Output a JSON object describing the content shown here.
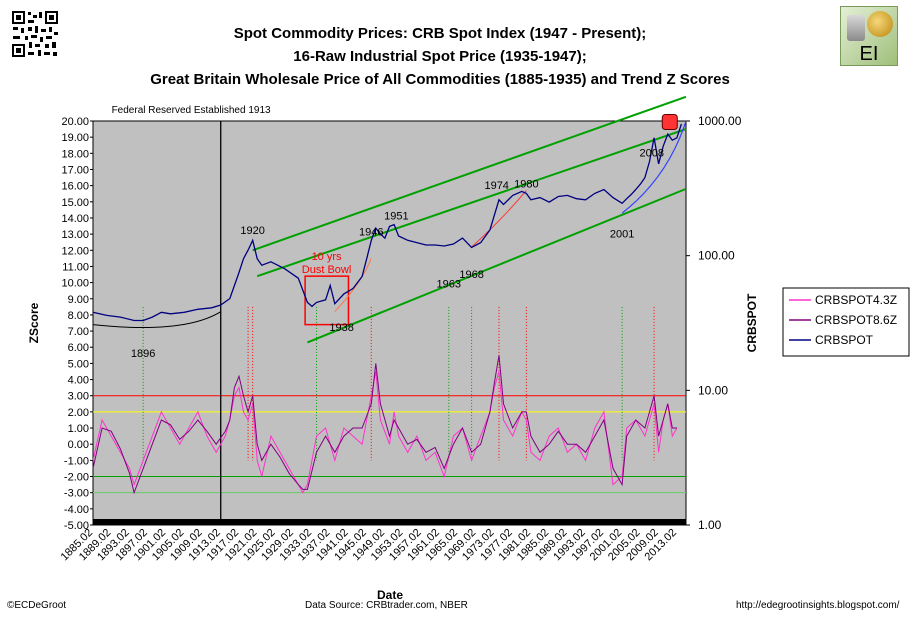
{
  "title": {
    "line1": "Spot Commodity Prices:  CRB Spot Index (1947 - Present);",
    "line2": "16-Raw Industrial Spot Price (1935-1947);",
    "line3": "Great Britain Wholesale Price of All Commodities (1885-1935) and Trend Z Scores"
  },
  "footer": {
    "left": "©ECDeGroot",
    "center": "Data Source:  CRBtrader.com, NBER",
    "right": "http://edegrootinsights.blogspot.com/"
  },
  "logo_text": "EI",
  "chart_data": {
    "type": "line",
    "xlabel": "Date",
    "ylabel_left": "ZScore",
    "ylabel_right": "CRBSPOT",
    "left_ylim": [
      -5,
      20
    ],
    "left_ticks": [
      "20.00",
      "19.00",
      "18.00",
      "17.00",
      "16.00",
      "15.00",
      "14.00",
      "13.00",
      "12.00",
      "11.00",
      "10.00",
      "9.00",
      "8.00",
      "7.00",
      "6.00",
      "5.00",
      "4.00",
      "3.00",
      "2.00",
      "1.00",
      "0.00",
      "-1.00",
      "-2.00",
      "-3.00",
      "-4.00",
      "-5.00"
    ],
    "right_scale": "log",
    "right_ticks": [
      "1000.00",
      "100.00",
      "10.00",
      "1.00"
    ],
    "right_tick_values": [
      1000,
      100,
      10,
      1
    ],
    "x_ticks": [
      "1885.02",
      "1889.02",
      "1893.02",
      "1897.02",
      "1901.02",
      "1905.02",
      "1909.02",
      "1913.02",
      "1917.02",
      "1921.02",
      "1925.02",
      "1929.02",
      "1933.02",
      "1937.02",
      "1941.02",
      "1945.02",
      "1949.02",
      "1953.02",
      "1957.02",
      "1961.02",
      "1965.02",
      "1969.02",
      "1973.02",
      "1977.02",
      "1981.02",
      "1985.02",
      "1989.02",
      "1993.02",
      "1997.02",
      "2001.02",
      "2005.02",
      "2009.02",
      "2013.02"
    ],
    "xlim": [
      1885,
      2015
    ],
    "legend_position": "right",
    "series": [
      {
        "name": "CRBSPOT4.3Z",
        "color": "#ff33cc",
        "axis": "left",
        "x": [
          1885,
          1887,
          1889,
          1891,
          1893,
          1894,
          1896,
          1898,
          1900,
          1902,
          1904,
          1906,
          1908,
          1910,
          1912,
          1914,
          1915,
          1916,
          1917,
          1918,
          1919,
          1920,
          1921,
          1922,
          1924,
          1926,
          1928,
          1930,
          1931,
          1932,
          1934,
          1936,
          1938,
          1940,
          1942,
          1944,
          1946,
          1947,
          1948,
          1950,
          1951,
          1952,
          1954,
          1956,
          1958,
          1960,
          1962,
          1964,
          1966,
          1968,
          1970,
          1972,
          1973,
          1974,
          1975,
          1977,
          1979,
          1980,
          1981,
          1983,
          1985,
          1987,
          1989,
          1991,
          1993,
          1995,
          1997,
          1999,
          2001,
          2002,
          2004,
          2006,
          2008,
          2009,
          2010,
          2011,
          2012,
          2013
        ],
        "y": [
          -1.0,
          1.5,
          0.5,
          -0.5,
          -1.5,
          -2.5,
          -1.0,
          0.5,
          2.0,
          1.0,
          0.0,
          1.0,
          2.0,
          0.5,
          -0.5,
          0.5,
          1.5,
          3.0,
          3.5,
          2.0,
          1.5,
          2.5,
          -1.0,
          -2.0,
          0.5,
          -0.5,
          -1.5,
          -2.5,
          -3.0,
          -2.5,
          0.5,
          1.0,
          -1.0,
          1.0,
          0.5,
          0.0,
          3.0,
          4.5,
          1.5,
          0.0,
          2.0,
          0.5,
          -0.5,
          0.5,
          -1.0,
          -0.5,
          -2.0,
          0.5,
          1.0,
          -1.0,
          0.5,
          2.0,
          3.5,
          4.5,
          1.5,
          0.5,
          2.0,
          1.5,
          -0.5,
          -1.0,
          0.5,
          1.0,
          -0.5,
          0.0,
          -1.0,
          1.0,
          2.0,
          -2.5,
          -2.0,
          1.0,
          1.5,
          0.5,
          2.5,
          -0.5,
          1.5,
          2.5,
          0.5,
          1.0
        ]
      },
      {
        "name": "CRBSPOT8.6Z",
        "color": "#800080",
        "axis": "left",
        "x": [
          1885,
          1887,
          1889,
          1891,
          1893,
          1894,
          1896,
          1898,
          1900,
          1902,
          1904,
          1906,
          1908,
          1910,
          1912,
          1914,
          1915,
          1916,
          1917,
          1918,
          1919,
          1920,
          1921,
          1922,
          1924,
          1926,
          1928,
          1930,
          1931,
          1932,
          1934,
          1936,
          1938,
          1940,
          1942,
          1944,
          1946,
          1947,
          1948,
          1950,
          1951,
          1952,
          1954,
          1956,
          1958,
          1960,
          1962,
          1964,
          1966,
          1968,
          1970,
          1972,
          1973,
          1974,
          1975,
          1977,
          1979,
          1980,
          1981,
          1983,
          1985,
          1987,
          1989,
          1991,
          1993,
          1995,
          1997,
          1999,
          2001,
          2002,
          2004,
          2006,
          2008,
          2009,
          2010,
          2011,
          2012,
          2013
        ],
        "y": [
          -1.5,
          1.0,
          0.8,
          -0.3,
          -1.8,
          -3.0,
          -1.5,
          0.0,
          1.5,
          1.2,
          0.3,
          0.8,
          1.5,
          0.8,
          0.0,
          0.8,
          1.5,
          3.5,
          4.2,
          3.0,
          2.0,
          3.0,
          0.0,
          -1.0,
          0.0,
          -0.8,
          -1.8,
          -2.5,
          -2.8,
          -2.8,
          -0.5,
          0.5,
          -0.5,
          0.5,
          1.0,
          1.0,
          2.5,
          5.0,
          2.5,
          0.5,
          1.5,
          1.0,
          0.0,
          0.3,
          -0.5,
          -0.2,
          -1.5,
          0.0,
          1.0,
          -0.5,
          0.0,
          2.0,
          3.8,
          5.5,
          2.5,
          1.0,
          2.0,
          2.0,
          0.5,
          -0.5,
          0.0,
          0.8,
          0.0,
          0.0,
          -0.5,
          0.5,
          1.5,
          -1.5,
          -2.5,
          0.5,
          1.5,
          1.0,
          3.0,
          0.5,
          1.5,
          2.5,
          1.0,
          1.0
        ]
      },
      {
        "name": "CRBSPOT",
        "color": "#000080",
        "axis": "right",
        "x": [
          1885,
          1888,
          1891,
          1894,
          1896,
          1898,
          1900,
          1902,
          1905,
          1908,
          1911,
          1913,
          1915,
          1917,
          1918,
          1919,
          1920,
          1921,
          1922,
          1924,
          1927,
          1930,
          1932,
          1933,
          1934,
          1936,
          1937,
          1938,
          1940,
          1942,
          1944,
          1945,
          1946,
          1947,
          1948,
          1949,
          1950,
          1951,
          1952,
          1954,
          1956,
          1958,
          1960,
          1962,
          1964,
          1966,
          1968,
          1970,
          1972,
          1973,
          1974,
          1975,
          1977,
          1979,
          1980,
          1981,
          1983,
          1985,
          1987,
          1989,
          1991,
          1993,
          1995,
          1997,
          1999,
          2001,
          2002,
          2003,
          2004,
          2005,
          2006,
          2007,
          2008,
          2009,
          2010,
          2011,
          2012,
          2013,
          2014
        ],
        "y": [
          38,
          36,
          35,
          33,
          33,
          35,
          38,
          37,
          38,
          40,
          41,
          43,
          48,
          75,
          95,
          110,
          130,
          95,
          85,
          90,
          80,
          68,
          45,
          42,
          45,
          47,
          60,
          44,
          52,
          57,
          70,
          95,
          130,
          160,
          145,
          135,
          165,
          170,
          140,
          130,
          125,
          120,
          120,
          118,
          122,
          135,
          115,
          125,
          155,
          200,
          260,
          240,
          280,
          300,
          290,
          260,
          270,
          250,
          275,
          280,
          265,
          260,
          290,
          310,
          270,
          245,
          265,
          285,
          310,
          340,
          380,
          500,
          750,
          480,
          650,
          800,
          720,
          750,
          950
        ]
      }
    ],
    "annotations": [
      {
        "text": "Federal Reserved Established 1913",
        "year": 1913
      },
      {
        "text": "1896",
        "year": 1896
      },
      {
        "text": "1920",
        "year": 1920
      },
      {
        "text": "10 yrs",
        "year": 1935
      },
      {
        "text": "Dust Bowl",
        "year": 1935
      },
      {
        "text": "1938",
        "year": 1938
      },
      {
        "text": "1946",
        "year": 1946
      },
      {
        "text": "1951",
        "year": 1951
      },
      {
        "text": "1963",
        "year": 1963
      },
      {
        "text": "1968",
        "year": 1968
      },
      {
        "text": "1974",
        "year": 1974
      },
      {
        "text": "1980",
        "year": 1980
      },
      {
        "text": "2001",
        "year": 2001
      },
      {
        "text": "2008",
        "year": 2008
      }
    ],
    "reference_lines": [
      {
        "axis": "left",
        "value": 3,
        "color": "#ff0000"
      },
      {
        "axis": "left",
        "value": 2,
        "color": "#ffff00"
      },
      {
        "axis": "left",
        "value": -2,
        "color": "#00a000"
      },
      {
        "axis": "left",
        "value": -3,
        "color": "#66cc66"
      }
    ],
    "grid": false,
    "background": "#c0c0c0"
  }
}
